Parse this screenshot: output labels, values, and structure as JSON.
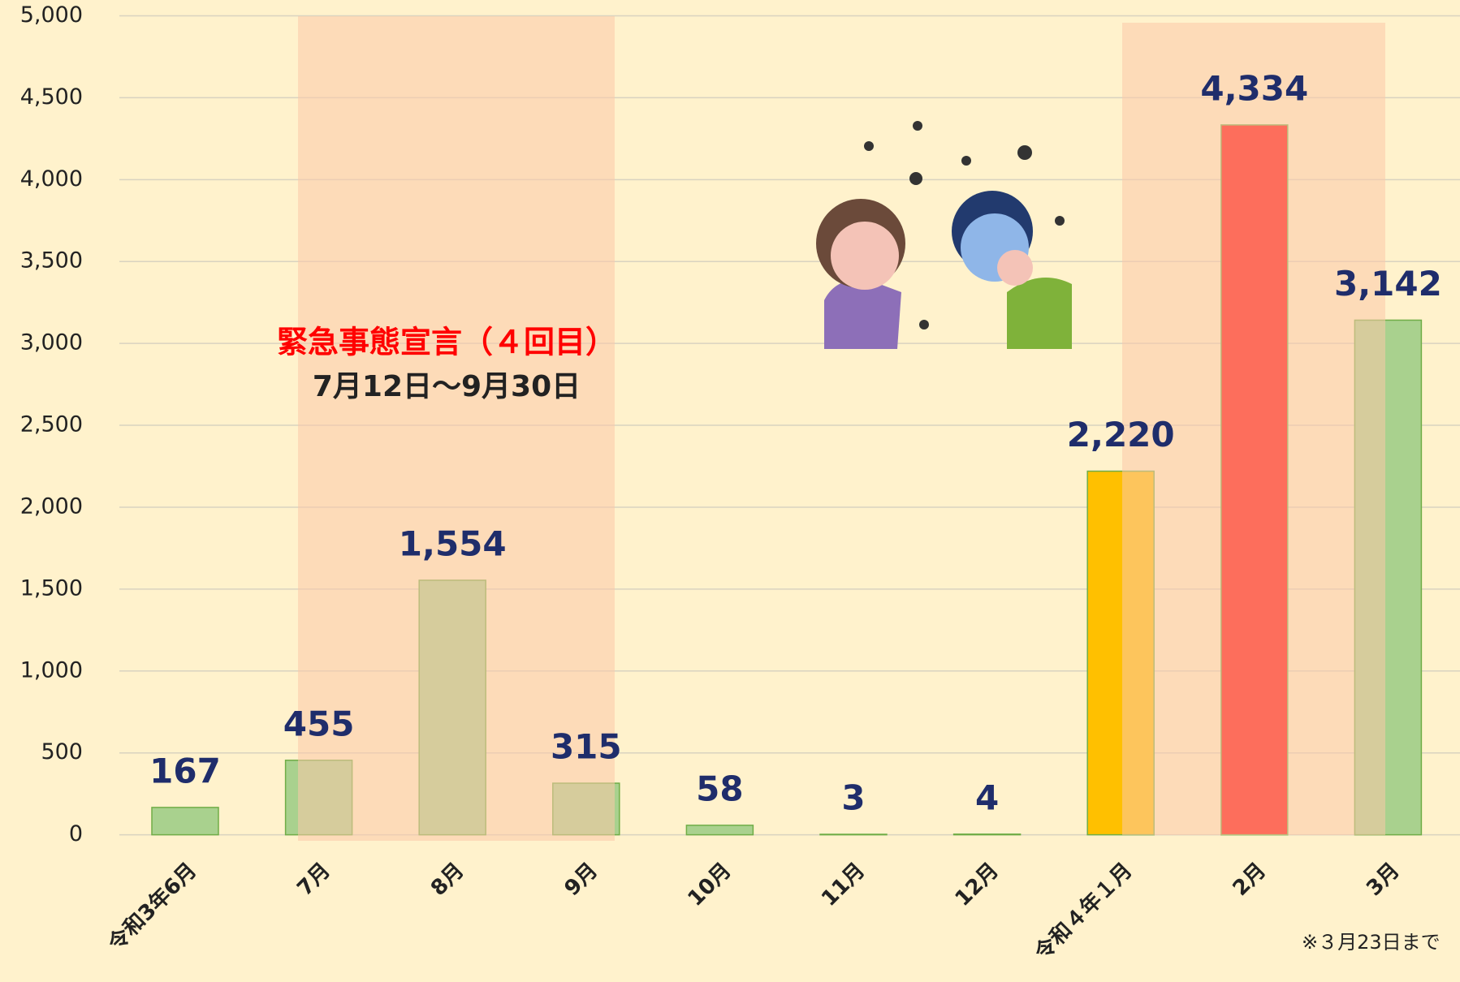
{
  "chart_data": {
    "type": "bar",
    "categories": [
      "令和3年6月",
      "7月",
      "8月",
      "9月",
      "10月",
      "11月",
      "12月",
      "令和４年１月",
      "2月",
      "3月"
    ],
    "values": [
      167,
      455,
      1554,
      315,
      58,
      3,
      4,
      2220,
      4334,
      3142
    ],
    "value_labels": [
      "167",
      "455",
      "1,554",
      "315",
      "58",
      "3",
      "4",
      "2,220",
      "4,334",
      "3,142"
    ],
    "colors": [
      "#a9d18e",
      "#a9d18e",
      "#a9d18e",
      "#a9d18e",
      "#a9d18e",
      "#a9d18e",
      "#a9d18e",
      "#ffc000",
      "#ff0000",
      "#a9d18e"
    ],
    "ylim": [
      0,
      5000
    ],
    "yticks": [
      0,
      500,
      {
        "value": 1000,
        "label": "1,000"
      },
      {
        "value": 1500,
        "label": "1,500"
      },
      {
        "value": 2000,
        "label": "2,000"
      },
      {
        "value": 2500,
        "label": "2,500"
      },
      {
        "value": 3000,
        "label": "3,000"
      },
      {
        "value": 3500,
        "label": "3,500"
      },
      {
        "value": 4000,
        "label": "4,000"
      },
      {
        "value": 4500,
        "label": "4,500"
      },
      {
        "value": 5000,
        "label": "5,000"
      }
    ],
    "grid": true,
    "annotations": [
      "緊急事態宣言（４回目）",
      "7月12日～9月30日"
    ],
    "footnote": "※３月23日まで"
  }
}
